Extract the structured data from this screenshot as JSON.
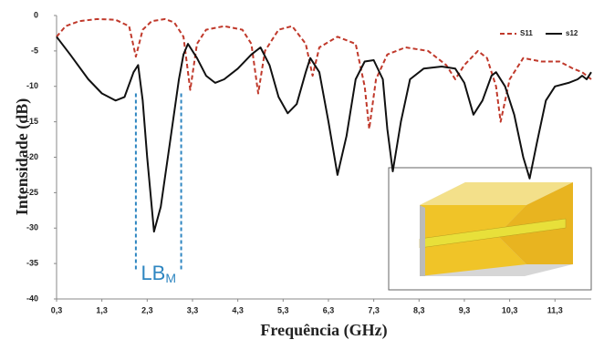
{
  "chart_data": {
    "type": "line",
    "xlabel": "Frequência (GHz)",
    "ylabel": "Intensidade (dB)",
    "xlim": [
      0.3,
      12.1
    ],
    "ylim": [
      -40,
      0
    ],
    "xticks": [
      {
        "value": 0.3,
        "label": "0,3"
      },
      {
        "value": 1.3,
        "label": "1,3"
      },
      {
        "value": 2.3,
        "label": "2,3"
      },
      {
        "value": 3.3,
        "label": "3,3"
      },
      {
        "value": 4.3,
        "label": "4,3"
      },
      {
        "value": 5.3,
        "label": "5,3"
      },
      {
        "value": 6.3,
        "label": "6,3"
      },
      {
        "value": 7.3,
        "label": "7,3"
      },
      {
        "value": 8.3,
        "label": "8,3"
      },
      {
        "value": 9.3,
        "label": "9,3"
      },
      {
        "value": 10.3,
        "label": "10,3"
      },
      {
        "value": 11.3,
        "label": "11,3"
      }
    ],
    "yticks": [
      0,
      -5,
      -10,
      -15,
      -20,
      -25,
      -30,
      -35,
      -40
    ],
    "grid": false,
    "legend": "top-right",
    "series": [
      {
        "name": "S11",
        "color": "#c0392b",
        "dashed": true,
        "x": [
          0.3,
          0.5,
          0.8,
          1.2,
          1.6,
          1.9,
          2.05,
          2.2,
          2.4,
          2.7,
          2.9,
          3.1,
          3.25,
          3.4,
          3.6,
          4.0,
          4.4,
          4.6,
          4.75,
          4.9,
          5.2,
          5.5,
          5.8,
          5.95,
          6.1,
          6.5,
          6.9,
          7.1,
          7.2,
          7.35,
          7.6,
          8.0,
          8.5,
          8.9,
          9.1,
          9.3,
          9.6,
          9.8,
          10.0,
          10.1,
          10.3,
          10.6,
          11.0,
          11.4,
          11.7,
          11.9,
          12.1
        ],
        "values": [
          -3,
          -1.5,
          -0.8,
          -0.5,
          -0.6,
          -1.5,
          -5.8,
          -2,
          -0.8,
          -0.5,
          -1,
          -3,
          -10.5,
          -4,
          -2,
          -1.5,
          -2,
          -4,
          -11,
          -5,
          -2,
          -1.5,
          -4,
          -8.5,
          -4.5,
          -3,
          -4,
          -10,
          -16,
          -9,
          -5.5,
          -4.5,
          -5,
          -7,
          -9,
          -7,
          -5,
          -6,
          -10,
          -15,
          -9,
          -6,
          -6.5,
          -6.5,
          -7.5,
          -8,
          -9
        ]
      },
      {
        "name": "s12",
        "color": "#111111",
        "dashed": false,
        "x": [
          0.3,
          0.6,
          1.0,
          1.3,
          1.6,
          1.8,
          2.0,
          2.1,
          2.2,
          2.3,
          2.45,
          2.6,
          2.8,
          3.0,
          3.1,
          3.2,
          3.4,
          3.6,
          3.8,
          4.0,
          4.3,
          4.6,
          4.8,
          5.0,
          5.2,
          5.4,
          5.6,
          5.8,
          5.9,
          6.1,
          6.3,
          6.5,
          6.7,
          6.9,
          7.1,
          7.3,
          7.5,
          7.6,
          7.72,
          7.9,
          8.1,
          8.4,
          8.8,
          9.1,
          9.3,
          9.5,
          9.7,
          9.9,
          10.0,
          10.2,
          10.4,
          10.6,
          10.74,
          10.9,
          11.1,
          11.3,
          11.6,
          11.8,
          11.9,
          12.0,
          12.1
        ],
        "values": [
          -3,
          -5.5,
          -9,
          -11,
          -12,
          -11.5,
          -8,
          -7,
          -12,
          -20,
          -30.5,
          -27,
          -18,
          -9,
          -5.5,
          -4,
          -6,
          -8.5,
          -9.5,
          -9,
          -7.5,
          -5.5,
          -4.5,
          -7,
          -11.5,
          -13.8,
          -12.5,
          -8,
          -6,
          -8,
          -15,
          -22.5,
          -17,
          -9,
          -6.5,
          -6.3,
          -9,
          -16,
          -22,
          -15,
          -9,
          -7.5,
          -7.2,
          -7.5,
          -9.5,
          -14,
          -12,
          -8.5,
          -8,
          -10,
          -14,
          -20,
          -23,
          -18,
          -12,
          -10,
          -9.5,
          -9,
          -8.5,
          -9,
          -8
        ]
      }
    ],
    "annotation": {
      "text": "LB",
      "subscript": "M",
      "color": "#2e86c1",
      "x": [
        2.05,
        3.05
      ],
      "y": [
        -11,
        -36
      ]
    }
  }
}
